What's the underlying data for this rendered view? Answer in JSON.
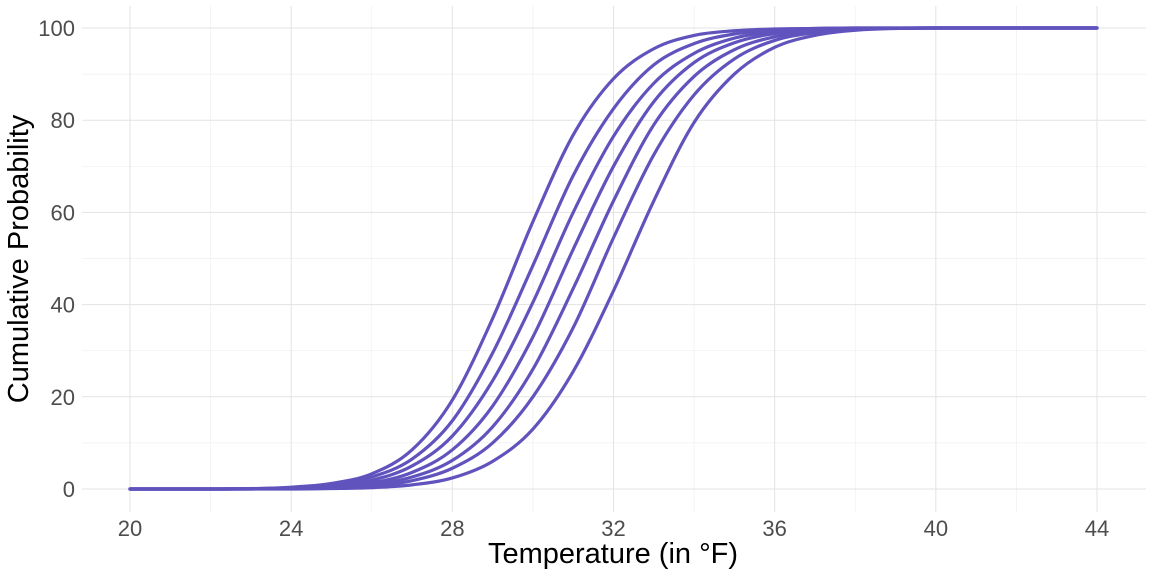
{
  "chart_data": {
    "type": "line",
    "xlabel": "Temperature (in °F)",
    "ylabel": "Cumulative Probability",
    "xlim": [
      20,
      44
    ],
    "ylim": [
      0,
      100
    ],
    "xticks": [
      20,
      24,
      28,
      32,
      36,
      40,
      44
    ],
    "yticks": [
      0,
      20,
      40,
      60,
      80,
      100
    ],
    "grid": true,
    "line_color": "#6153BD",
    "x": [
      20,
      22,
      24,
      25,
      26,
      27,
      28,
      29,
      30,
      31,
      32,
      33,
      34,
      35,
      36,
      37,
      38,
      40,
      44
    ],
    "series": [
      {
        "values": [
          0.0,
          0.0,
          0.4,
          1.2,
          3.3,
          8.5,
          19.3,
          37.0,
          58.0,
          76.8,
          89.0,
          95.5,
          98.4,
          99.4,
          99.8,
          99.9,
          100.0,
          100.0,
          100.0
        ]
      },
      {
        "values": [
          0.0,
          0.0,
          0.3,
          0.9,
          2.6,
          6.5,
          14.8,
          29.5,
          48.5,
          68.0,
          82.5,
          92.0,
          96.6,
          98.7,
          99.5,
          99.9,
          100.0,
          100.0,
          100.0
        ]
      },
      {
        "values": [
          0.0,
          0.0,
          0.2,
          0.6,
          1.9,
          5.0,
          11.5,
          23.5,
          40.5,
          60.0,
          76.5,
          88.0,
          94.5,
          97.8,
          99.2,
          99.7,
          99.9,
          100.0,
          100.0
        ]
      },
      {
        "values": [
          0.0,
          0.0,
          0.1,
          0.4,
          1.3,
          3.6,
          8.5,
          18.0,
          33.0,
          52.0,
          70.0,
          84.0,
          92.5,
          96.8,
          98.8,
          99.6,
          99.9,
          100.0,
          100.0
        ]
      },
      {
        "values": [
          0.0,
          0.0,
          0.1,
          0.3,
          0.9,
          2.6,
          6.2,
          13.5,
          26.0,
          43.5,
          62.5,
          79.0,
          89.5,
          95.3,
          98.1,
          99.3,
          99.8,
          100.0,
          100.0
        ]
      },
      {
        "values": [
          0.0,
          0.0,
          0.05,
          0.2,
          0.6,
          1.8,
          4.5,
          10.0,
          20.0,
          35.0,
          54.5,
          72.5,
          85.5,
          93.3,
          97.3,
          99.0,
          99.7,
          100.0,
          100.0
        ]
      },
      {
        "values": [
          0.0,
          0.0,
          0.0,
          0.1,
          0.3,
          0.9,
          2.4,
          6.0,
          13.0,
          25.5,
          43.0,
          62.5,
          79.5,
          90.0,
          95.8,
          98.4,
          99.5,
          100.0,
          100.0
        ]
      }
    ]
  }
}
